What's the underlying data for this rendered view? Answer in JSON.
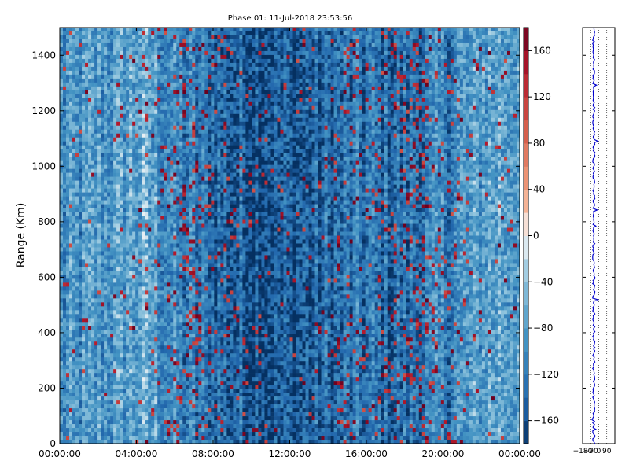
{
  "chart_data": [
    {
      "type": "heatmap",
      "title": "Phase 01: 11-Jul-2018 23:53:56",
      "xlabel": "",
      "ylabel": "Range (Km)",
      "x_ticks": [
        "00:00:00",
        "04:00:00",
        "08:00:00",
        "12:00:00",
        "16:00:00",
        "20:00:00",
        "00:00:00"
      ],
      "x_range_hours": [
        0,
        24
      ],
      "y_ticks": [
        0,
        200,
        400,
        600,
        800,
        1000,
        1200,
        1400
      ],
      "ylim": [
        0,
        1500
      ],
      "colorbar": {
        "ticks": [
          160,
          120,
          80,
          40,
          0,
          -40,
          -80,
          -120,
          -160
        ],
        "range": [
          -180,
          180
        ],
        "colormap": "RdBu_r"
      },
      "profile_hours": [
        0,
        1,
        2,
        3,
        4,
        5,
        6,
        7,
        8,
        9,
        10,
        11,
        12,
        13,
        14,
        15,
        16,
        17,
        18,
        19,
        20,
        21,
        22,
        23
      ],
      "profile_mean_phase": [
        -100,
        -95,
        -90,
        -85,
        -70,
        -80,
        -110,
        -120,
        -130,
        -140,
        -145,
        -150,
        -150,
        -145,
        -140,
        -130,
        -125,
        -135,
        -130,
        -120,
        -110,
        -95,
        -80,
        -70
      ],
      "profile_red_fraction": [
        0.02,
        0.03,
        0.02,
        0.02,
        0.03,
        0.05,
        0.1,
        0.14,
        0.08,
        0.05,
        0.04,
        0.03,
        0.03,
        0.03,
        0.04,
        0.08,
        0.05,
        0.1,
        0.12,
        0.14,
        0.1,
        0.05,
        0.03,
        0.02
      ]
    },
    {
      "type": "line",
      "xlim": [
        -180,
        180
      ],
      "x_ticks": [
        "-180",
        "-90",
        "0",
        "90"
      ],
      "ylim": [
        0,
        1500
      ],
      "baseline_value": -55
    }
  ],
  "colors": {
    "line": "#0000cc",
    "grid": "#000000",
    "background": "#ffffff"
  }
}
